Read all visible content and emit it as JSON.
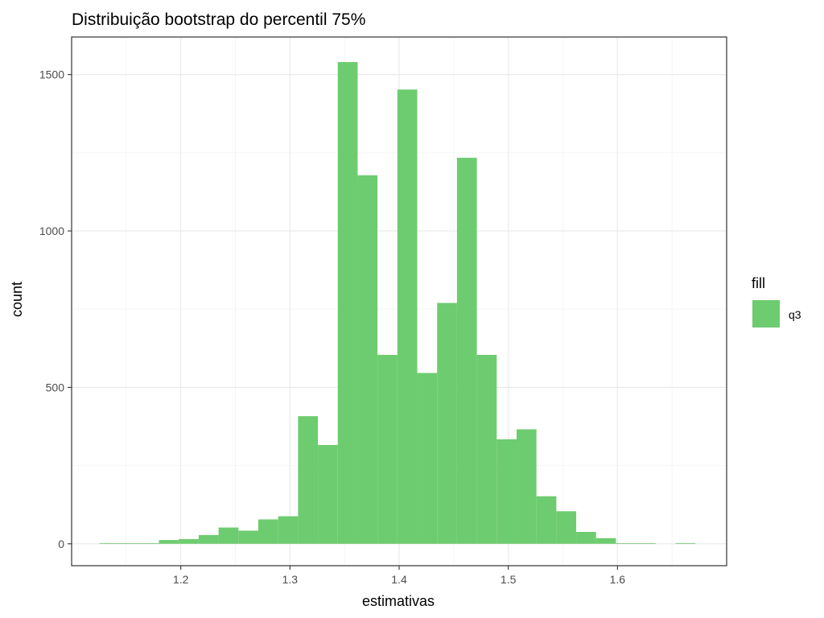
{
  "chart_data": {
    "type": "bar",
    "title": "Distribuição bootstrap do percentil 75%",
    "xlabel": "estimativas",
    "ylabel": "count",
    "xlim": [
      1.1,
      1.7
    ],
    "ylim": [
      -70,
      1620
    ],
    "x_ticks": [
      1.2,
      1.3,
      1.4,
      1.5,
      1.6
    ],
    "x_tick_labels": [
      "1.2",
      "1.3",
      "1.4",
      "1.5",
      "1.6"
    ],
    "y_ticks": [
      0,
      500,
      1000,
      1500
    ],
    "y_tick_labels": [
      "0",
      "500",
      "1000",
      "1500"
    ],
    "bin_width": 0.0182,
    "bins": [
      {
        "x0": 1.1254,
        "x1": 1.1436,
        "count": 2
      },
      {
        "x0": 1.1436,
        "x1": 1.1618,
        "count": 2
      },
      {
        "x0": 1.1618,
        "x1": 1.18,
        "count": 2
      },
      {
        "x0": 1.18,
        "x1": 1.1982,
        "count": 12
      },
      {
        "x0": 1.1982,
        "x1": 1.2164,
        "count": 15
      },
      {
        "x0": 1.2164,
        "x1": 1.2346,
        "count": 28
      },
      {
        "x0": 1.2346,
        "x1": 1.2528,
        "count": 52
      },
      {
        "x0": 1.2528,
        "x1": 1.271,
        "count": 42
      },
      {
        "x0": 1.271,
        "x1": 1.2892,
        "count": 78
      },
      {
        "x0": 1.2892,
        "x1": 1.3074,
        "count": 88
      },
      {
        "x0": 1.3074,
        "x1": 1.3256,
        "count": 408
      },
      {
        "x0": 1.3256,
        "x1": 1.3438,
        "count": 316
      },
      {
        "x0": 1.3438,
        "x1": 1.362,
        "count": 1540
      },
      {
        "x0": 1.362,
        "x1": 1.3802,
        "count": 1178
      },
      {
        "x0": 1.3802,
        "x1": 1.3984,
        "count": 604
      },
      {
        "x0": 1.3984,
        "x1": 1.4166,
        "count": 1452
      },
      {
        "x0": 1.4166,
        "x1": 1.4348,
        "count": 546
      },
      {
        "x0": 1.4348,
        "x1": 1.453,
        "count": 770
      },
      {
        "x0": 1.453,
        "x1": 1.4712,
        "count": 1234
      },
      {
        "x0": 1.4712,
        "x1": 1.4894,
        "count": 604
      },
      {
        "x0": 1.4894,
        "x1": 1.5076,
        "count": 334
      },
      {
        "x0": 1.5076,
        "x1": 1.5258,
        "count": 366
      },
      {
        "x0": 1.5258,
        "x1": 1.544,
        "count": 152
      },
      {
        "x0": 1.544,
        "x1": 1.5622,
        "count": 104
      },
      {
        "x0": 1.5622,
        "x1": 1.5804,
        "count": 38
      },
      {
        "x0": 1.5804,
        "x1": 1.5986,
        "count": 18
      },
      {
        "x0": 1.5986,
        "x1": 1.6168,
        "count": 2
      },
      {
        "x0": 1.6168,
        "x1": 1.635,
        "count": 2
      },
      {
        "x0": 1.635,
        "x1": 1.6532,
        "count": 0
      },
      {
        "x0": 1.6532,
        "x1": 1.6714,
        "count": 2
      }
    ],
    "series": [
      {
        "name": "q3",
        "color": "#6dcc6f"
      }
    ],
    "legend": {
      "title": "fill",
      "position": "right",
      "labels": [
        "q3"
      ]
    },
    "grid": true,
    "colors": {
      "bar": "#6dcc6f",
      "grid_major": "#ebebeb",
      "grid_minor": "#f4f4f4",
      "panel_border": "#333333",
      "tick_text": "#4d4d4d"
    }
  }
}
